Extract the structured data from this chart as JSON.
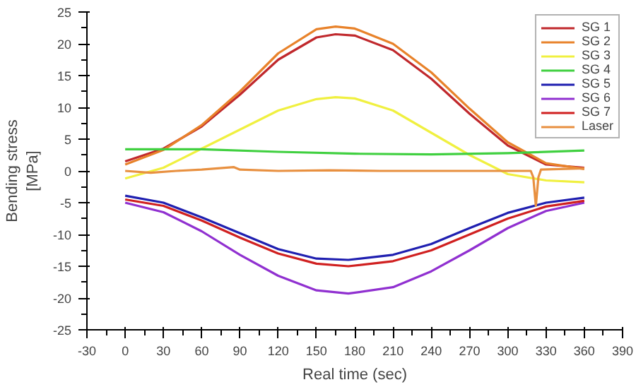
{
  "chart_data": {
    "type": "line",
    "xlabel": "Real time (sec)",
    "ylabel": "Bending stress\n[MPa]",
    "xlim": [
      -30,
      390
    ],
    "xticks": [
      -30,
      0,
      30,
      60,
      90,
      120,
      150,
      180,
      210,
      240,
      270,
      300,
      330,
      360,
      390
    ],
    "ylim": [
      -25,
      25
    ],
    "yticks": [
      -25,
      -20,
      -15,
      -10,
      -5,
      0,
      5,
      10,
      15,
      20,
      25
    ],
    "grid": false,
    "legend": "top right",
    "line_style": "solid",
    "marker": "none",
    "series": [
      {
        "name": "SG 1",
        "color": "#c0282c",
        "x": [
          0,
          30,
          60,
          90,
          120,
          150,
          165,
          180,
          210,
          240,
          270,
          300,
          330,
          360
        ],
        "values": [
          1.5,
          3.5,
          7,
          12,
          17.5,
          21,
          21.5,
          21.3,
          19,
          14.5,
          9,
          4,
          1,
          0.5
        ]
      },
      {
        "name": "SG 2",
        "color": "#e8822a",
        "x": [
          0,
          30,
          60,
          90,
          120,
          150,
          165,
          180,
          210,
          240,
          270,
          300,
          330,
          360
        ],
        "values": [
          1.0,
          3.3,
          7.2,
          12.5,
          18.5,
          22.3,
          22.7,
          22.4,
          20,
          15.5,
          9.8,
          4.5,
          1.2,
          0.3
        ]
      },
      {
        "name": "SG 3",
        "color": "#f0f040",
        "x": [
          0,
          30,
          60,
          90,
          120,
          150,
          165,
          180,
          210,
          240,
          270,
          300,
          330,
          360
        ],
        "values": [
          -1.2,
          0.5,
          3.5,
          6.5,
          9.5,
          11.3,
          11.6,
          11.4,
          9.5,
          6,
          2.5,
          -0.5,
          -1.5,
          -1.8
        ]
      },
      {
        "name": "SG 4",
        "color": "#40d040",
        "x": [
          0,
          60,
          120,
          180,
          240,
          300,
          360
        ],
        "values": [
          3.4,
          3.4,
          3,
          2.7,
          2.6,
          2.8,
          3.2
        ]
      },
      {
        "name": "SG 5",
        "color": "#1f1fb0",
        "x": [
          0,
          30,
          60,
          90,
          120,
          150,
          175,
          210,
          240,
          270,
          300,
          330,
          360
        ],
        "values": [
          -3.9,
          -5,
          -7.3,
          -9.8,
          -12.3,
          -13.8,
          -14,
          -13.2,
          -11.5,
          -9,
          -6.6,
          -5,
          -4.2
        ]
      },
      {
        "name": "SG 6",
        "color": "#9030d0",
        "x": [
          0,
          30,
          60,
          90,
          120,
          150,
          175,
          210,
          240,
          270,
          300,
          330,
          360
        ],
        "values": [
          -5,
          -6.5,
          -9.5,
          -13.2,
          -16.5,
          -18.8,
          -19.3,
          -18.3,
          -15.8,
          -12.5,
          -9,
          -6.3,
          -5
        ]
      },
      {
        "name": "SG 7",
        "color": "#d02020",
        "x": [
          0,
          30,
          60,
          90,
          120,
          150,
          175,
          210,
          240,
          270,
          300,
          330,
          360
        ],
        "values": [
          -4.5,
          -5.5,
          -7.8,
          -10.5,
          -13,
          -14.6,
          -15,
          -14.2,
          -12.5,
          -10,
          -7.5,
          -5.6,
          -4.7
        ]
      },
      {
        "name": "Laser",
        "color": "#e89040",
        "x": [
          0,
          20,
          40,
          60,
          85,
          90,
          120,
          160,
          200,
          240,
          280,
          318,
          320,
          322,
          324,
          326,
          340,
          360
        ],
        "values": [
          0,
          -0.3,
          0,
          0.2,
          0.6,
          0.2,
          0,
          0.1,
          0,
          0,
          0,
          0,
          -1,
          -5.5,
          -1,
          0.2,
          0.3,
          0.4
        ]
      }
    ]
  }
}
